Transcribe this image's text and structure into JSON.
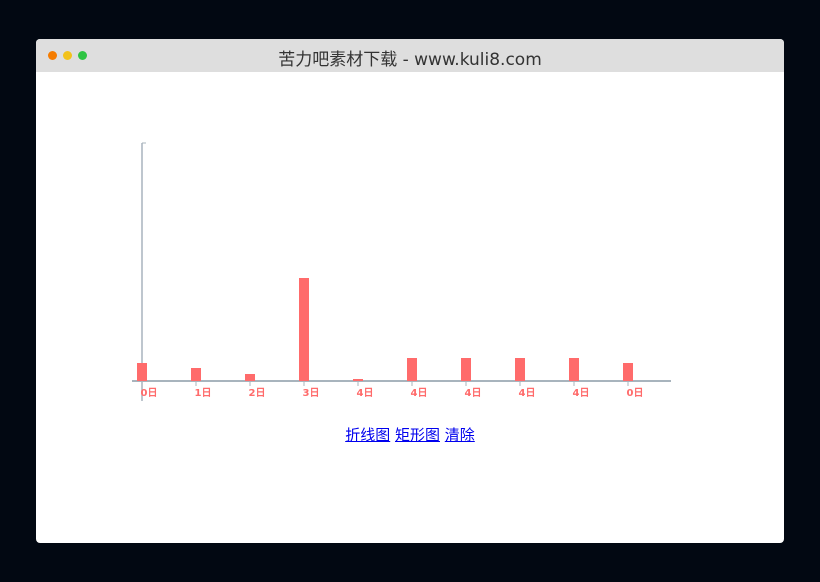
{
  "window": {
    "title": "苦力吧素材下载 - www.kuli8.com",
    "dots": [
      "#f57c00",
      "#f2c21b",
      "#2ec443"
    ]
  },
  "links": [
    "折线图",
    "矩形图",
    "清除"
  ],
  "chart_data": {
    "type": "bar",
    "categories": [
      "0日",
      "1日",
      "2日",
      "3日",
      "4日",
      "4日",
      "4日",
      "4日",
      "4日",
      "0日"
    ],
    "values": [
      18,
      13,
      7,
      103,
      2,
      23,
      23,
      23,
      23,
      18
    ],
    "ylim": [
      0,
      238
    ],
    "grid": false,
    "bar_color": "#ff6b6b",
    "axis_color": "#a8b4bd"
  }
}
